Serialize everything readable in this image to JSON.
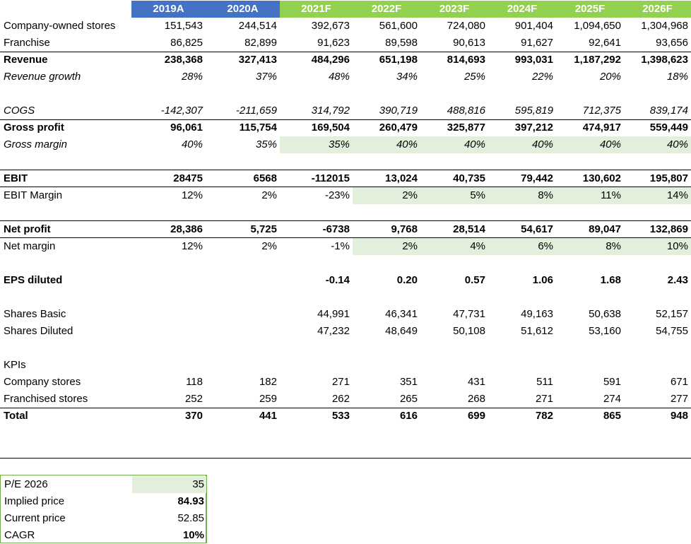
{
  "headers": [
    "2019A",
    "2020A",
    "2021F",
    "2022F",
    "2023F",
    "2024F",
    "2025F",
    "2026F"
  ],
  "colors": {
    "actual_header": "#4472c4",
    "forecast_header": "#92d050",
    "forecast_shade": "#e2efda"
  },
  "rows": {
    "company_owned": {
      "label": "Company-owned stores",
      "values": [
        "151,543",
        "244,514",
        "392,673",
        "561,600",
        "724,080",
        "901,404",
        "1,094,650",
        "1,304,968"
      ]
    },
    "franchise": {
      "label": "Franchise",
      "values": [
        "86,825",
        "82,899",
        "91,623",
        "89,598",
        "90,613",
        "91,627",
        "92,641",
        "93,656"
      ]
    },
    "revenue": {
      "label": "Revenue",
      "values": [
        "238,368",
        "327,413",
        "484,296",
        "651,198",
        "814,693",
        "993,031",
        "1,187,292",
        "1,398,623"
      ]
    },
    "revenue_growth": {
      "label": "Revenue growth",
      "values": [
        "28%",
        "37%",
        "48%",
        "34%",
        "25%",
        "22%",
        "20%",
        "18%"
      ]
    },
    "cogs": {
      "label": "COGS",
      "values": [
        "-142,307",
        "-211,659",
        "314,792",
        "390,719",
        "488,816",
        "595,819",
        "712,375",
        "839,174"
      ]
    },
    "gross_profit": {
      "label": "Gross profit",
      "values": [
        "96,061",
        "115,754",
        "169,504",
        "260,479",
        "325,877",
        "397,212",
        "474,917",
        "559,449"
      ]
    },
    "gross_margin": {
      "label": "Gross margin",
      "values": [
        "40%",
        "35%",
        "35%",
        "40%",
        "40%",
        "40%",
        "40%",
        "40%"
      ]
    },
    "ebit": {
      "label": "EBIT",
      "values": [
        "28475",
        "6568",
        "-112015",
        "13,024",
        "40,735",
        "79,442",
        "130,602",
        "195,807"
      ]
    },
    "ebit_margin": {
      "label": "EBIT Margin",
      "values": [
        "12%",
        "2%",
        "-23%",
        "2%",
        "5%",
        "8%",
        "11%",
        "14%"
      ]
    },
    "net_profit": {
      "label": "Net profit",
      "values": [
        "28,386",
        "5,725",
        "-6738",
        "9,768",
        "28,514",
        "54,617",
        "89,047",
        "132,869"
      ]
    },
    "net_margin": {
      "label": "Net margin",
      "values": [
        "12%",
        "2%",
        "-1%",
        "2%",
        "4%",
        "6%",
        "8%",
        "10%"
      ]
    },
    "eps_diluted": {
      "label": "EPS diluted",
      "values": [
        "",
        "",
        "-0.14",
        "0.20",
        "0.57",
        "1.06",
        "1.68",
        "2.43"
      ]
    },
    "shares_basic": {
      "label": "Shares Basic",
      "values": [
        "",
        "",
        "44,991",
        "46,341",
        "47,731",
        "49,163",
        "50,638",
        "52,157"
      ]
    },
    "shares_diluted": {
      "label": "Shares Diluted",
      "values": [
        "",
        "",
        "47,232",
        "48,649",
        "50,108",
        "51,612",
        "53,160",
        "54,755"
      ]
    },
    "kpis": {
      "label": "KPIs",
      "values": [
        "",
        "",
        "",
        "",
        "",
        "",
        "",
        ""
      ]
    },
    "company_stores": {
      "label": "Company stores",
      "values": [
        "118",
        "182",
        "271",
        "351",
        "431",
        "511",
        "591",
        "671"
      ]
    },
    "franchised_stores": {
      "label": "Franchised stores",
      "values": [
        "252",
        "259",
        "262",
        "265",
        "268",
        "271",
        "274",
        "277"
      ]
    },
    "total": {
      "label": "Total",
      "values": [
        "370",
        "441",
        "533",
        "616",
        "699",
        "782",
        "865",
        "948"
      ]
    }
  },
  "valuation": {
    "pe_label": "P/E 2026",
    "pe_value": "35",
    "implied_label": "Implied price",
    "implied_value": "84.93",
    "current_label": "Current price",
    "current_value": "52.85",
    "cagr_label": "CAGR",
    "cagr_value": "10%"
  }
}
